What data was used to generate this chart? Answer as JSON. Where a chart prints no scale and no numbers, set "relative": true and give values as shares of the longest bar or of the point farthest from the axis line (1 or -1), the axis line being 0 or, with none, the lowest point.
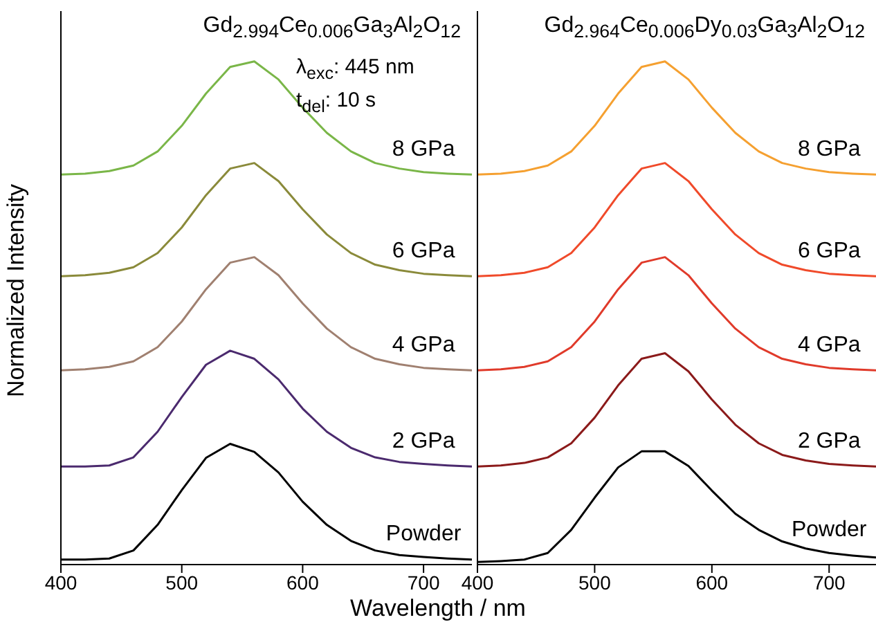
{
  "chart_data": [
    {
      "type": "line",
      "title": "Gd$_{2.994}$Ce$_{0.006}$Ga$_{3}$Al$_{2}$O$_{12}$",
      "xlabel": "Wavelength / nm",
      "ylabel": "Normalized Intensity",
      "annotations": [
        "λ$_{exc}$: 445 nm",
        "t$_{del}$: 10 s"
      ],
      "relative": true,
      "xlim": [
        400,
        740
      ],
      "xticks": [
        400,
        500,
        600,
        700
      ],
      "x": [
        400,
        420,
        440,
        460,
        480,
        500,
        520,
        540,
        560,
        580,
        600,
        620,
        640,
        660,
        680,
        700,
        720,
        740
      ],
      "series": [
        {
          "name": "Powder",
          "color": "#000000",
          "values": [
            0.01,
            0.01,
            0.012,
            0.028,
            0.079,
            0.148,
            0.212,
            0.24,
            0.224,
            0.183,
            0.125,
            0.079,
            0.047,
            0.028,
            0.019,
            0.015,
            0.012,
            0.01
          ]
        },
        {
          "name": "2 GPa",
          "color": "#4b2a6e",
          "values": [
            0.195,
            0.195,
            0.197,
            0.213,
            0.264,
            0.333,
            0.397,
            0.425,
            0.409,
            0.368,
            0.31,
            0.264,
            0.232,
            0.213,
            0.204,
            0.2,
            0.197,
            0.195
          ]
        },
        {
          "name": "4 GPa",
          "color": "#a08070",
          "values": [
            0.386,
            0.388,
            0.393,
            0.404,
            0.432,
            0.483,
            0.547,
            0.6,
            0.611,
            0.575,
            0.519,
            0.469,
            0.432,
            0.409,
            0.398,
            0.391,
            0.388,
            0.386
          ]
        },
        {
          "name": "6 GPa",
          "color": "#8a8a3a",
          "values": [
            0.573,
            0.575,
            0.58,
            0.591,
            0.619,
            0.67,
            0.734,
            0.787,
            0.798,
            0.762,
            0.706,
            0.656,
            0.619,
            0.596,
            0.585,
            0.578,
            0.575,
            0.573
          ]
        },
        {
          "name": "8 GPa",
          "color": "#7ab648",
          "values": [
            0.775,
            0.777,
            0.782,
            0.793,
            0.821,
            0.872,
            0.936,
            0.989,
            1.0,
            0.964,
            0.908,
            0.858,
            0.821,
            0.798,
            0.787,
            0.78,
            0.777,
            0.775
          ]
        }
      ]
    },
    {
      "type": "line",
      "title": "Gd$_{2.964}$Ce$_{0.006}$Dy$_{0.03}$Ga$_{3}$Al$_{2}$O$_{12}$",
      "relative": true,
      "xlim": [
        400,
        740
      ],
      "xticks": [
        400,
        500,
        600,
        700
      ],
      "x": [
        400,
        420,
        440,
        460,
        480,
        500,
        520,
        540,
        560,
        580,
        600,
        620,
        640,
        660,
        680,
        700,
        720,
        740
      ],
      "series": [
        {
          "name": "Powder",
          "color": "#000000",
          "values": [
            0.005,
            0.007,
            0.01,
            0.023,
            0.069,
            0.133,
            0.193,
            0.225,
            0.225,
            0.196,
            0.147,
            0.101,
            0.069,
            0.046,
            0.032,
            0.023,
            0.018,
            0.014
          ]
        },
        {
          "name": "2 GPa",
          "color": "#8b1a1a",
          "values": [
            0.195,
            0.197,
            0.202,
            0.213,
            0.241,
            0.292,
            0.356,
            0.409,
            0.42,
            0.384,
            0.328,
            0.278,
            0.241,
            0.218,
            0.207,
            0.2,
            0.197,
            0.195
          ]
        },
        {
          "name": "4 GPa",
          "color": "#e03a2a",
          "values": [
            0.386,
            0.388,
            0.393,
            0.404,
            0.432,
            0.483,
            0.547,
            0.6,
            0.611,
            0.575,
            0.519,
            0.469,
            0.432,
            0.409,
            0.398,
            0.391,
            0.388,
            0.386
          ]
        },
        {
          "name": "6 GPa",
          "color": "#f04a2a",
          "values": [
            0.573,
            0.575,
            0.58,
            0.591,
            0.619,
            0.67,
            0.734,
            0.787,
            0.798,
            0.762,
            0.706,
            0.656,
            0.619,
            0.596,
            0.585,
            0.578,
            0.575,
            0.573
          ]
        },
        {
          "name": "8 GPa",
          "color": "#f5a030",
          "values": [
            0.775,
            0.777,
            0.782,
            0.793,
            0.821,
            0.872,
            0.936,
            0.989,
            1.0,
            0.964,
            0.908,
            0.858,
            0.821,
            0.798,
            0.787,
            0.78,
            0.777,
            0.775
          ]
        }
      ]
    }
  ]
}
